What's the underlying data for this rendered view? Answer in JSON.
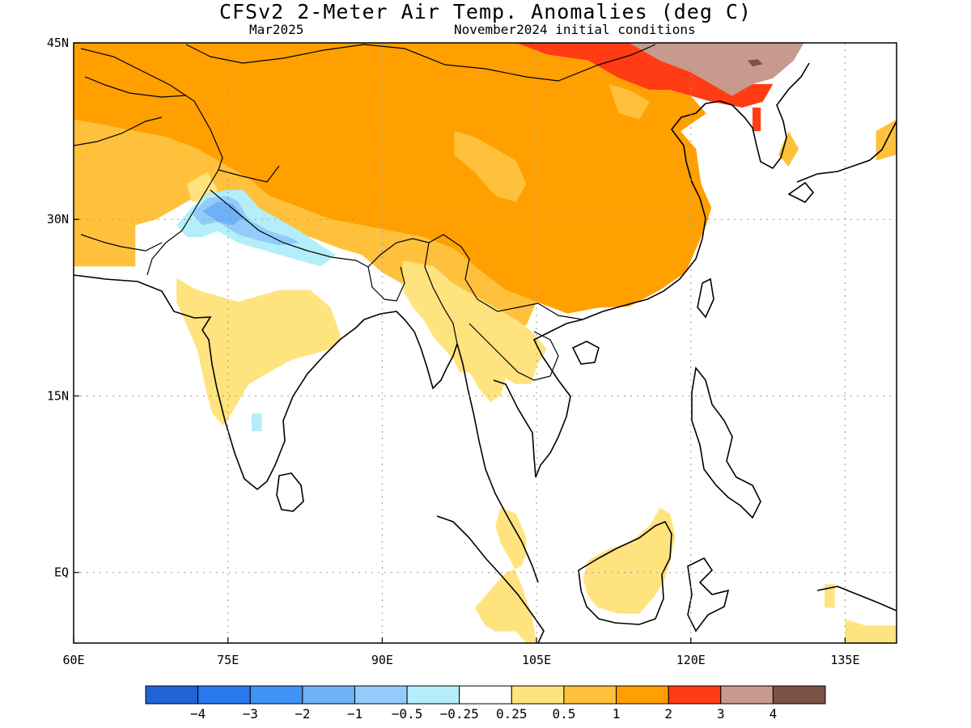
{
  "title": "CFSv2 2-Meter Air Temp. Anomalies (deg C)",
  "valid_month": "Mar2025",
  "initial_conditions": "November2024 initial conditions",
  "map": {
    "lon_range": [
      60,
      140
    ],
    "lat_range": [
      -6,
      45
    ],
    "lon_ticks": [
      {
        "v": 60,
        "label": "60E"
      },
      {
        "v": 75,
        "label": "75E"
      },
      {
        "v": 90,
        "label": "90E"
      },
      {
        "v": 105,
        "label": "105E"
      },
      {
        "v": 120,
        "label": "120E"
      },
      {
        "v": 135,
        "label": "135E"
      }
    ],
    "lat_ticks": [
      {
        "v": 45,
        "label": "45N"
      },
      {
        "v": 30,
        "label": "30N"
      },
      {
        "v": 15,
        "label": "15N"
      },
      {
        "v": 0,
        "label": "EQ"
      }
    ],
    "gridlines": "dotted",
    "land_color": "#ffffff",
    "coastline_color": "#000000"
  },
  "colorbar": {
    "colors": [
      "#1f63d4",
      "#2a78ee",
      "#3f93f5",
      "#6fb1f6",
      "#93ccfa",
      "#b3eefa",
      "#ffffff",
      "#ffe37f",
      "#ffc13c",
      "#ffa000",
      "#ff3c14",
      "#c69a8d",
      "#7b5244"
    ],
    "labels": [
      "-4",
      "-3",
      "-2",
      "-1",
      "-0.5",
      "-0.25",
      "0.25",
      "0.5",
      "1",
      "2",
      "3",
      "4"
    ]
  },
  "chart_data": {
    "type": "heatmap",
    "variable": "2-Meter Air Temp. Anomalies (deg C)",
    "x_units": "degrees east longitude",
    "y_units": "degrees north latitude",
    "regions": [
      {
        "category": ">3",
        "value": 3.5,
        "color": "#c69a8d",
        "polygon": [
          [
            114,
            45
          ],
          [
            117,
            43.5
          ],
          [
            120,
            42.5
          ],
          [
            122,
            41.5
          ],
          [
            124,
            40.5
          ],
          [
            126,
            41.5
          ],
          [
            128,
            42
          ],
          [
            130,
            43.5
          ],
          [
            131,
            45
          ]
        ]
      },
      {
        "category": ">4",
        "value": 4.2,
        "color": "#7b5244",
        "polygon": [
          [
            125.5,
            43.5
          ],
          [
            126.5,
            43.6
          ],
          [
            127,
            43.2
          ],
          [
            126,
            43
          ]
        ]
      },
      {
        "category": "2 to 3",
        "value": 2.5,
        "color": "#ff3c14",
        "polygon": [
          [
            103,
            45
          ],
          [
            106,
            44
          ],
          [
            110,
            43.5
          ],
          [
            113,
            42
          ],
          [
            116,
            41
          ],
          [
            118,
            41
          ],
          [
            120,
            40.5
          ],
          [
            122,
            40
          ],
          [
            125,
            39.5
          ],
          [
            127,
            40
          ],
          [
            128,
            41.5
          ],
          [
            126,
            41.5
          ],
          [
            124,
            40.5
          ],
          [
            122,
            41.5
          ],
          [
            120,
            42.5
          ],
          [
            117,
            43.5
          ],
          [
            114,
            45
          ]
        ]
      },
      {
        "category": "2 to 3",
        "value": 2.5,
        "color": "#ff3c14",
        "polygon": [
          [
            126,
            39.5
          ],
          [
            126.8,
            39.5
          ],
          [
            126.8,
            37.5
          ],
          [
            126,
            37.5
          ]
        ]
      },
      {
        "category": "1 to 2",
        "value": 1.5,
        "color": "#ffa000",
        "polygon": [
          [
            60,
            45
          ],
          [
            103,
            45
          ],
          [
            106,
            44
          ],
          [
            110,
            43.5
          ],
          [
            113,
            42
          ],
          [
            116,
            41
          ],
          [
            118,
            41
          ],
          [
            120,
            40.5
          ],
          [
            121.5,
            39
          ],
          [
            119,
            37.5
          ],
          [
            120.5,
            36
          ],
          [
            121,
            33
          ],
          [
            122,
            31
          ],
          [
            121.5,
            29.5
          ],
          [
            120.5,
            27.5
          ],
          [
            119.5,
            25.5
          ],
          [
            117,
            24
          ],
          [
            114,
            22.6
          ],
          [
            111,
            22.5
          ],
          [
            108,
            22
          ],
          [
            105,
            23
          ],
          [
            102,
            24
          ],
          [
            99,
            26
          ],
          [
            97,
            27.5
          ],
          [
            94,
            28.5
          ],
          [
            91,
            29
          ],
          [
            88,
            29.5
          ],
          [
            85,
            30
          ],
          [
            82,
            31
          ],
          [
            79,
            32
          ],
          [
            77,
            33.5
          ],
          [
            75,
            34.5
          ],
          [
            72,
            36
          ],
          [
            69,
            37
          ],
          [
            66,
            37.5
          ],
          [
            63,
            38
          ],
          [
            60,
            38.5
          ]
        ]
      },
      {
        "category": "0.5 to 1",
        "value": 0.75,
        "color": "#ffc13c",
        "polygon": [
          [
            60,
            38.5
          ],
          [
            63,
            38
          ],
          [
            66,
            37.5
          ],
          [
            69,
            37
          ],
          [
            72,
            36
          ],
          [
            75,
            34.5
          ],
          [
            77,
            33.5
          ],
          [
            79,
            32
          ],
          [
            82,
            31
          ],
          [
            85,
            30
          ],
          [
            88,
            29.5
          ],
          [
            91,
            29
          ],
          [
            94,
            28.5
          ],
          [
            97,
            27.5
          ],
          [
            99,
            26
          ],
          [
            102,
            24
          ],
          [
            105,
            23
          ],
          [
            104,
            21
          ],
          [
            102,
            20.5
          ],
          [
            100,
            22
          ],
          [
            98,
            22.5
          ],
          [
            96,
            23
          ],
          [
            94,
            24
          ],
          [
            92,
            24.5
          ],
          [
            90,
            25.5
          ],
          [
            88,
            27
          ],
          [
            86,
            27.5
          ],
          [
            83,
            28.5
          ],
          [
            80,
            29
          ],
          [
            78,
            30.5
          ],
          [
            77,
            31.5
          ],
          [
            75,
            31.5
          ],
          [
            72,
            32
          ],
          [
            70,
            31
          ],
          [
            68,
            30
          ],
          [
            66,
            29.5
          ],
          [
            66,
            26
          ],
          [
            63,
            26
          ],
          [
            60,
            26
          ]
        ]
      },
      {
        "category": "0.5 to 1",
        "value": 0.75,
        "color": "#ffc13c",
        "polygon": [
          [
            97,
            37.5
          ],
          [
            99,
            37
          ],
          [
            101,
            36
          ],
          [
            103,
            35
          ],
          [
            104,
            33
          ],
          [
            103,
            31.5
          ],
          [
            101,
            32
          ],
          [
            99,
            34
          ],
          [
            97,
            35.5
          ]
        ]
      },
      {
        "category": "0.5 to 1",
        "value": 0.75,
        "color": "#ffc13c",
        "polygon": [
          [
            112,
            41.5
          ],
          [
            114,
            41
          ],
          [
            116,
            40
          ],
          [
            115,
            38.5
          ],
          [
            113,
            39
          ]
        ]
      },
      {
        "category": "0.5 to 1",
        "value": 0.75,
        "color": "#ffc13c",
        "polygon": [
          [
            129.5,
            37.5
          ],
          [
            130.5,
            36
          ],
          [
            129.5,
            34.5
          ],
          [
            128.5,
            35.5
          ]
        ]
      },
      {
        "category": "0.5 to 1",
        "value": 0.75,
        "color": "#ffc13c",
        "polygon": [
          [
            138,
            37.5
          ],
          [
            140,
            38.5
          ],
          [
            140,
            35.5
          ],
          [
            138,
            35
          ]
        ]
      },
      {
        "category": "0.25 to 0.5",
        "value": 0.4,
        "color": "#ffe37f",
        "polygon": [
          [
            92,
            26.5
          ],
          [
            95,
            26
          ],
          [
            97,
            24.5
          ],
          [
            99,
            23.5
          ],
          [
            101,
            22.5
          ],
          [
            103,
            21.5
          ],
          [
            104.5,
            20.5
          ],
          [
            106,
            19
          ],
          [
            105,
            17.5
          ],
          [
            104.5,
            16
          ],
          [
            103,
            16
          ],
          [
            102,
            16.5
          ],
          [
            101.5,
            15
          ],
          [
            100.5,
            14.5
          ],
          [
            99.5,
            15.5
          ],
          [
            98.5,
            17
          ],
          [
            97.5,
            17
          ],
          [
            97,
            18
          ],
          [
            96,
            19
          ],
          [
            95,
            20
          ],
          [
            94,
            21.5
          ],
          [
            93,
            22.5
          ],
          [
            92,
            24
          ]
        ]
      },
      {
        "category": "0.25 to 0.5",
        "value": 0.4,
        "color": "#ffe37f",
        "polygon": [
          [
            71,
            33
          ],
          [
            73,
            34
          ],
          [
            74,
            32.5
          ],
          [
            73,
            31.5
          ],
          [
            71.5,
            31.5
          ]
        ]
      },
      {
        "category": "0.25 to 0.5",
        "value": 0.4,
        "color": "#ffe37f",
        "polygon": [
          [
            70,
            25
          ],
          [
            72,
            24
          ],
          [
            74,
            23.5
          ],
          [
            76,
            23
          ],
          [
            78,
            23.5
          ],
          [
            80,
            24
          ],
          [
            83,
            24
          ],
          [
            85,
            22.5
          ],
          [
            86,
            20
          ],
          [
            85,
            19
          ],
          [
            83,
            18.5
          ],
          [
            81,
            18
          ],
          [
            79,
            17
          ],
          [
            77,
            16
          ],
          [
            76,
            14.5
          ],
          [
            75,
            13
          ],
          [
            74.5,
            12.5
          ],
          [
            73.5,
            13.5
          ],
          [
            73,
            15
          ],
          [
            72.5,
            17
          ],
          [
            72,
            19
          ],
          [
            71,
            21
          ],
          [
            70,
            23
          ]
        ]
      },
      {
        "category": "0.25 to 0.5",
        "value": 0.4,
        "color": "#ffe37f",
        "polygon": [
          [
            101.5,
            5.5
          ],
          [
            103,
            5
          ],
          [
            104,
            3
          ],
          [
            104,
            1.5
          ],
          [
            103.5,
            0.5
          ],
          [
            102,
            0
          ],
          [
            101,
            -1
          ],
          [
            100,
            -2
          ],
          [
            99,
            -3
          ],
          [
            100,
            -4.5
          ],
          [
            101,
            -5
          ],
          [
            103,
            -5
          ],
          [
            104,
            -6
          ],
          [
            105,
            -6
          ],
          [
            104.5,
            -3.5
          ],
          [
            103.5,
            -1
          ],
          [
            102.5,
            1
          ],
          [
            101.5,
            2.5
          ],
          [
            101,
            4
          ]
        ]
      },
      {
        "category": "0.25 to 0.5",
        "value": 0.4,
        "color": "#ffe37f",
        "polygon": [
          [
            110,
            1
          ],
          [
            112,
            2
          ],
          [
            114,
            2.5
          ],
          [
            116,
            4
          ],
          [
            117,
            5.5
          ],
          [
            118,
            5
          ],
          [
            118.5,
            3
          ],
          [
            118,
            1
          ],
          [
            117.5,
            -0.5
          ],
          [
            116.5,
            -2
          ],
          [
            115,
            -3.5
          ],
          [
            113,
            -3.5
          ],
          [
            111,
            -3
          ],
          [
            110,
            -2
          ],
          [
            109.5,
            -0.5
          ]
        ]
      },
      {
        "category": "0.25 to 0.5",
        "value": 0.4,
        "color": "#ffe37f",
        "polygon": [
          [
            135,
            -4
          ],
          [
            137,
            -4.5
          ],
          [
            140,
            -4.5
          ],
          [
            140,
            -6
          ],
          [
            135,
            -6
          ]
        ]
      },
      {
        "category": "0.25 to 0.5",
        "value": 0.4,
        "color": "#ffe37f",
        "polygon": [
          [
            133,
            -1
          ],
          [
            134,
            -1
          ],
          [
            134,
            -3
          ],
          [
            133,
            -3
          ]
        ]
      },
      {
        "category": "-0.5 to -0.25",
        "value": -0.4,
        "color": "#b3eefa",
        "polygon": [
          [
            70,
            29.5
          ],
          [
            71.5,
            31
          ],
          [
            73,
            32.2
          ],
          [
            75,
            32.5
          ],
          [
            76.5,
            32.5
          ],
          [
            78,
            31
          ],
          [
            80,
            30
          ],
          [
            82,
            29
          ],
          [
            84,
            27.8
          ],
          [
            85.5,
            27
          ],
          [
            84,
            26
          ],
          [
            82,
            26.5
          ],
          [
            80,
            27
          ],
          [
            78,
            27.5
          ],
          [
            76,
            28
          ],
          [
            74,
            29
          ],
          [
            72.5,
            28.5
          ],
          [
            71,
            28.5
          ]
        ]
      },
      {
        "category": "-0.5 to -0.25",
        "value": -0.4,
        "color": "#b3eefa",
        "polygon": [
          [
            77.3,
            13.5
          ],
          [
            78.3,
            13.5
          ],
          [
            78.3,
            12
          ],
          [
            77.3,
            12
          ]
        ]
      },
      {
        "category": "-1 to -0.5",
        "value": -0.75,
        "color": "#93ccfa",
        "polygon": [
          [
            71.5,
            30.5
          ],
          [
            73,
            31.8
          ],
          [
            75,
            32
          ],
          [
            76,
            31.5
          ],
          [
            77,
            30
          ],
          [
            79,
            29
          ],
          [
            81,
            28.5
          ],
          [
            82,
            28
          ],
          [
            80,
            27.8
          ],
          [
            78,
            28.2
          ],
          [
            76,
            28.7
          ],
          [
            74,
            29.8
          ],
          [
            72.5,
            29.5
          ]
        ]
      },
      {
        "category": "-2 to -1",
        "value": -1.2,
        "color": "#6fb1f6",
        "polygon": [
          [
            72.5,
            30.7
          ],
          [
            74,
            31.5
          ],
          [
            75.5,
            31.3
          ],
          [
            76.5,
            30.2
          ],
          [
            75.5,
            29.5
          ],
          [
            74,
            29.8
          ]
        ]
      }
    ]
  }
}
